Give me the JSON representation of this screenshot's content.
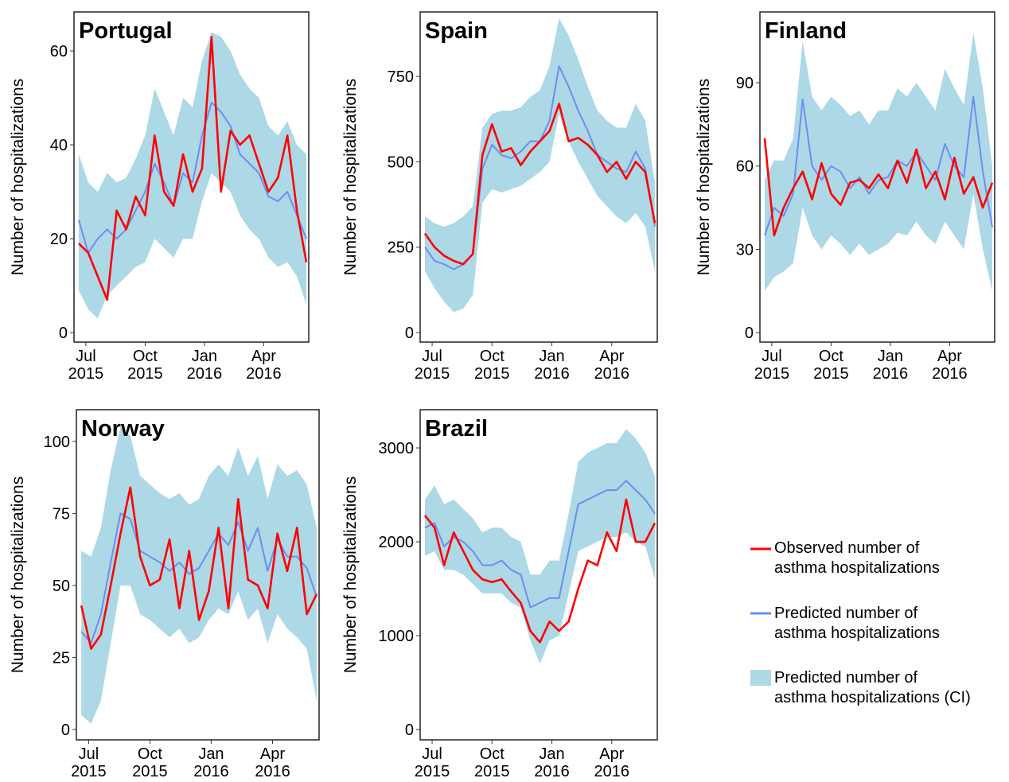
{
  "chart_data": [
    {
      "type": "line",
      "title": "Portugal",
      "y_label": "Number of hospitalizations",
      "x": [
        2015.47,
        2015.51,
        2015.55,
        2015.59,
        2015.63,
        2015.67,
        2015.71,
        2015.75,
        2015.79,
        2015.83,
        2015.87,
        2015.91,
        2015.95,
        2015.99,
        2016.03,
        2016.07,
        2016.11,
        2016.15,
        2016.19,
        2016.23,
        2016.27,
        2016.31,
        2016.35,
        2016.39,
        2016.43
      ],
      "xlim": [
        2015.45,
        2016.44
      ],
      "xticks": [
        {
          "value": 2015.5,
          "label": "Jul\n2015"
        },
        {
          "value": 2015.75,
          "label": "Oct\n2015"
        },
        {
          "value": 2016,
          "label": "Jan\n2016"
        },
        {
          "value": 2016.25,
          "label": "Apr\n2016"
        }
      ],
      "ylim": [
        -2,
        68.3
      ],
      "yticks": [
        0,
        20,
        40,
        60
      ],
      "series": [
        {
          "name": "Observed number of\nasthma hospitalizations",
          "color": "#ff0000",
          "values": [
            19,
            17,
            12,
            7,
            26,
            22,
            29,
            25,
            42,
            30,
            27,
            38,
            30,
            35,
            63,
            30,
            43,
            40,
            42,
            36,
            30,
            33,
            42,
            26,
            15
          ]
        },
        {
          "name": "Predicted number of\nasthma hospitalizations",
          "color": "#6b8ef0",
          "values": [
            24,
            17,
            20,
            22,
            20,
            22,
            26,
            30,
            36,
            32,
            27,
            34,
            32,
            42,
            49,
            47,
            44,
            38,
            36,
            34,
            29,
            28,
            30,
            25,
            20
          ]
        },
        {
          "name": "Predicted number of\nasthma hospitalizations (CI)",
          "color": "#add8e6",
          "lower": [
            9,
            5,
            3,
            8,
            10,
            12,
            14,
            15,
            20,
            18,
            16,
            20,
            20,
            28,
            34,
            32,
            30,
            25,
            22,
            20,
            16,
            14,
            15,
            12,
            6
          ],
          "upper": [
            38,
            32,
            30,
            34,
            32,
            33,
            37,
            42,
            52,
            47,
            42,
            50,
            48,
            58,
            64,
            63,
            60,
            55,
            52,
            50,
            44,
            42,
            45,
            40,
            38
          ]
        }
      ]
    },
    {
      "type": "line",
      "title": "Spain",
      "y_label": "Number of hospitalizations",
      "x": [
        2015.47,
        2015.51,
        2015.55,
        2015.59,
        2015.63,
        2015.67,
        2015.71,
        2015.75,
        2015.79,
        2015.83,
        2015.87,
        2015.91,
        2015.95,
        2015.99,
        2016.03,
        2016.07,
        2016.11,
        2016.15,
        2016.19,
        2016.23,
        2016.27,
        2016.31,
        2016.35,
        2016.39,
        2016.43
      ],
      "xlim": [
        2015.45,
        2016.44
      ],
      "xticks": [
        {
          "value": 2015.5,
          "label": "Jul\n2015"
        },
        {
          "value": 2015.75,
          "label": "Oct\n2015"
        },
        {
          "value": 2016,
          "label": "Jan\n2016"
        },
        {
          "value": 2016.25,
          "label": "Apr\n2016"
        }
      ],
      "ylim": [
        -28,
        939
      ],
      "yticks": [
        0,
        250,
        500,
        750
      ],
      "series": [
        {
          "color": "#ff0000",
          "values": [
            290,
            250,
            225,
            210,
            200,
            230,
            520,
            610,
            530,
            540,
            490,
            530,
            560,
            590,
            670,
            560,
            570,
            550,
            520,
            470,
            500,
            450,
            500,
            470,
            320
          ]
        },
        {
          "color": "#6b8ef0",
          "values": [
            250,
            210,
            200,
            185,
            200,
            230,
            480,
            550,
            520,
            510,
            530,
            560,
            560,
            620,
            780,
            720,
            650,
            590,
            520,
            500,
            480,
            470,
            530,
            480,
            310
          ]
        },
        {
          "color": "#add8e6",
          "lower": [
            180,
            130,
            90,
            60,
            70,
            110,
            380,
            420,
            410,
            420,
            430,
            450,
            470,
            500,
            640,
            560,
            500,
            450,
            400,
            370,
            340,
            320,
            350,
            310,
            180
          ],
          "upper": [
            340,
            320,
            310,
            320,
            340,
            370,
            600,
            640,
            650,
            650,
            660,
            690,
            710,
            780,
            920,
            870,
            800,
            720,
            650,
            620,
            600,
            600,
            670,
            620,
            440
          ]
        }
      ]
    },
    {
      "type": "line",
      "title": "Finland",
      "y_label": "Number of hospitalizations",
      "x": [
        2015.47,
        2015.51,
        2015.55,
        2015.59,
        2015.63,
        2015.67,
        2015.71,
        2015.75,
        2015.79,
        2015.83,
        2015.87,
        2015.91,
        2015.95,
        2015.99,
        2016.03,
        2016.07,
        2016.11,
        2016.15,
        2016.19,
        2016.23,
        2016.27,
        2016.31,
        2016.35,
        2016.39,
        2016.43
      ],
      "xlim": [
        2015.45,
        2016.44
      ],
      "xticks": [
        {
          "value": 2015.5,
          "label": "Jul\n2015"
        },
        {
          "value": 2015.75,
          "label": "Oct\n2015"
        },
        {
          "value": 2016,
          "label": "Jan\n2016"
        },
        {
          "value": 2016.25,
          "label": "Apr\n2016"
        }
      ],
      "ylim": [
        -3.4,
        115.5
      ],
      "yticks": [
        0,
        30,
        60,
        90
      ],
      "series": [
        {
          "color": "#ff0000",
          "values": [
            70,
            35,
            45,
            52,
            58,
            48,
            61,
            50,
            46,
            54,
            55,
            52,
            57,
            52,
            62,
            54,
            66,
            52,
            58,
            48,
            63,
            50,
            56,
            45,
            54
          ]
        },
        {
          "color": "#6b8ef0",
          "values": [
            35,
            45,
            42,
            50,
            84,
            60,
            55,
            60,
            58,
            52,
            56,
            50,
            55,
            56,
            62,
            60,
            65,
            60,
            55,
            68,
            60,
            56,
            85,
            58,
            38
          ]
        },
        {
          "color": "#add8e6",
          "lower": [
            15,
            20,
            22,
            25,
            45,
            35,
            30,
            35,
            32,
            28,
            32,
            28,
            30,
            32,
            36,
            35,
            40,
            35,
            32,
            40,
            35,
            30,
            50,
            30,
            15
          ],
          "upper": [
            55,
            62,
            62,
            70,
            105,
            85,
            80,
            85,
            82,
            78,
            80,
            75,
            80,
            80,
            88,
            85,
            90,
            85,
            80,
            95,
            88,
            82,
            108,
            88,
            60
          ]
        }
      ]
    },
    {
      "type": "line",
      "title": "Norway",
      "y_label": "Number of hospitalizations",
      "x": [
        2015.47,
        2015.51,
        2015.55,
        2015.59,
        2015.63,
        2015.67,
        2015.71,
        2015.75,
        2015.79,
        2015.83,
        2015.87,
        2015.91,
        2015.95,
        2015.99,
        2016.03,
        2016.07,
        2016.11,
        2016.15,
        2016.19,
        2016.23,
        2016.27,
        2016.31,
        2016.35,
        2016.39,
        2016.43
      ],
      "xlim": [
        2015.45,
        2016.44
      ],
      "xticks": [
        {
          "value": 2015.5,
          "label": "Jul\n2015"
        },
        {
          "value": 2015.75,
          "label": "Oct\n2015"
        },
        {
          "value": 2016,
          "label": "Jan\n2016"
        },
        {
          "value": 2016.25,
          "label": "Apr\n2016"
        }
      ],
      "ylim": [
        -3.6,
        111
      ],
      "yticks": [
        0,
        25,
        50,
        75,
        100
      ],
      "series": [
        {
          "color": "#ff0000",
          "values": [
            43,
            28,
            33,
            50,
            68,
            84,
            60,
            50,
            52,
            66,
            42,
            62,
            38,
            48,
            70,
            42,
            80,
            52,
            50,
            42,
            68,
            55,
            70,
            40,
            47
          ]
        },
        {
          "color": "#6b8ef0",
          "values": [
            34,
            30,
            40,
            58,
            75,
            73,
            62,
            60,
            58,
            55,
            58,
            54,
            56,
            62,
            68,
            64,
            72,
            62,
            70,
            55,
            66,
            60,
            60,
            56,
            46
          ]
        },
        {
          "color": "#add8e6",
          "lower": [
            5,
            2,
            10,
            30,
            50,
            50,
            40,
            38,
            35,
            32,
            35,
            30,
            32,
            38,
            42,
            40,
            48,
            38,
            42,
            30,
            40,
            35,
            32,
            28,
            10
          ],
          "upper": [
            62,
            60,
            70,
            90,
            105,
            102,
            88,
            85,
            82,
            80,
            82,
            78,
            80,
            88,
            92,
            88,
            98,
            88,
            95,
            80,
            92,
            88,
            90,
            85,
            70
          ]
        }
      ]
    },
    {
      "type": "line",
      "title": "Brazil",
      "y_label": "Number of hospitalizations",
      "x": [
        2015.47,
        2015.51,
        2015.55,
        2015.59,
        2015.63,
        2015.67,
        2015.71,
        2015.75,
        2015.79,
        2015.83,
        2015.87,
        2015.91,
        2015.95,
        2015.99,
        2016.03,
        2016.07,
        2016.11,
        2016.15,
        2016.19,
        2016.23,
        2016.27,
        2016.31,
        2016.35,
        2016.39,
        2016.43
      ],
      "xlim": [
        2015.45,
        2016.44
      ],
      "xticks": [
        {
          "value": 2015.5,
          "label": "Jul\n2015"
        },
        {
          "value": 2015.75,
          "label": "Oct\n2015"
        },
        {
          "value": 2016,
          "label": "Jan\n2016"
        },
        {
          "value": 2016.25,
          "label": "Apr\n2016"
        }
      ],
      "ylim": [
        -110,
        3407
      ],
      "yticks": [
        0,
        1000,
        2000,
        3000
      ],
      "series": [
        {
          "color": "#ff0000",
          "values": [
            2280,
            2150,
            1750,
            2100,
            1900,
            1700,
            1600,
            1570,
            1600,
            1470,
            1350,
            1050,
            930,
            1150,
            1050,
            1150,
            1500,
            1800,
            1750,
            2100,
            1900,
            2450,
            2000,
            2000,
            2200
          ]
        },
        {
          "color": "#6b8ef0",
          "values": [
            2150,
            2200,
            1950,
            2050,
            2000,
            1900,
            1750,
            1750,
            1800,
            1700,
            1650,
            1300,
            1350,
            1400,
            1400,
            1900,
            2400,
            2450,
            2500,
            2550,
            2550,
            2650,
            2550,
            2450,
            2300
          ]
        },
        {
          "color": "#add8e6",
          "lower": [
            1850,
            1900,
            1700,
            1700,
            1650,
            1550,
            1450,
            1450,
            1450,
            1350,
            1300,
            950,
            700,
            950,
            1000,
            1450,
            1900,
            1950,
            2000,
            2050,
            2050,
            2100,
            2000,
            1950,
            1600
          ],
          "upper": [
            2450,
            2600,
            2400,
            2450,
            2350,
            2250,
            2100,
            2150,
            2150,
            2050,
            2000,
            1650,
            1650,
            1800,
            1800,
            2300,
            2850,
            2950,
            3000,
            3050,
            3050,
            3200,
            3100,
            2950,
            2700
          ]
        }
      ]
    }
  ]
}
